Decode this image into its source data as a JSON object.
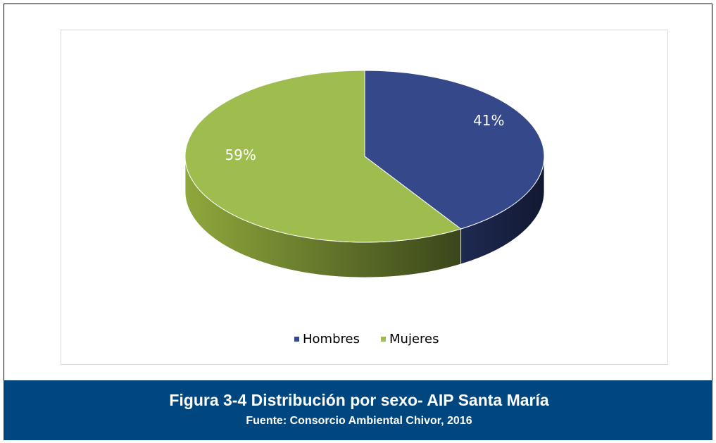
{
  "chart_data": {
    "type": "pie",
    "categories": [
      "Hombres",
      "Mujeres"
    ],
    "values": [
      41,
      59
    ],
    "value_labels": [
      "41%",
      "59%"
    ],
    "colors": [
      "#35488a",
      "#9fbd4f"
    ],
    "legend": "bottom"
  },
  "caption": {
    "title": "Figura 3-4 Distribución por sexo- AIP Santa María",
    "source": "Fuente: Consorcio Ambiental Chivor, 2016"
  }
}
